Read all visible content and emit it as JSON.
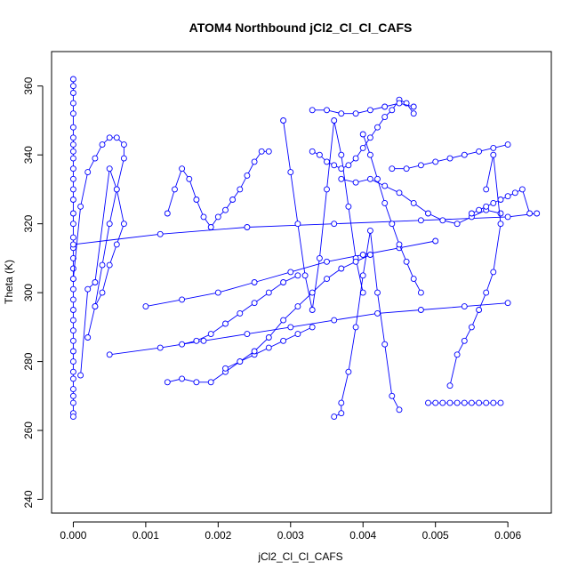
{
  "chart_data": {
    "type": "line",
    "title": "ATOM4 Northbound jCl2_Cl_Cl_CAFS",
    "xlabel": "jCl2_Cl_Cl_CAFS",
    "ylabel": "Theta (K)",
    "xlim": [
      -0.0003,
      0.0066
    ],
    "ylim": [
      236,
      370
    ],
    "xticks": [
      0.0,
      0.001,
      0.002,
      0.003,
      0.004,
      0.005,
      0.006
    ],
    "xtick_labels": [
      "0.000",
      "0.001",
      "0.002",
      "0.003",
      "0.004",
      "0.005",
      "0.006"
    ],
    "yticks": [
      240,
      260,
      280,
      300,
      320,
      340,
      360
    ],
    "ytick_labels": [
      "240",
      "260",
      "280",
      "300",
      "320",
      "340",
      "360"
    ],
    "grid": false,
    "marker": "open-circle",
    "color": "#0000ff",
    "series": [
      {
        "x": [
          0,
          0,
          0,
          0,
          0,
          0,
          0,
          0,
          0,
          0,
          0,
          0,
          0,
          0,
          0,
          0,
          0,
          0,
          0,
          0,
          0,
          0,
          0,
          0,
          0,
          0,
          0,
          0,
          0,
          0,
          0,
          0,
          0,
          0,
          0,
          0
        ],
        "y": [
          362,
          360,
          358,
          355,
          352,
          348,
          345,
          343,
          341,
          339,
          336,
          333,
          330,
          327,
          323,
          320,
          316,
          313,
          310,
          307,
          304,
          301,
          298,
          295,
          292,
          289,
          286,
          283,
          280,
          277,
          275,
          272,
          270,
          268,
          265,
          264
        ]
      },
      {
        "x": [
          0.0,
          0.0001,
          0.0002,
          0.0003,
          0.0004,
          0.0005,
          0.0006,
          0.0007,
          0.0007,
          0.0006,
          0.0005,
          0.0004,
          0.0003
        ],
        "y": [
          304,
          325,
          335,
          339,
          343,
          345,
          345,
          343,
          339,
          330,
          320,
          308,
          296
        ]
      },
      {
        "x": [
          0.0002,
          0.0003,
          0.0004,
          0.0005,
          0.0006,
          0.0007,
          0.0006,
          0.0005,
          0.0003,
          0.0002,
          0.0001
        ],
        "y": [
          287,
          296,
          300,
          308,
          314,
          320,
          330,
          336,
          303,
          301,
          276
        ]
      },
      {
        "x": [
          0.0,
          0.0012,
          0.0024,
          0.0036,
          0.0048,
          0.006,
          0.0064
        ],
        "y": [
          314,
          317,
          319,
          320,
          321,
          322,
          323
        ]
      },
      {
        "x": [
          0.0005,
          0.0012,
          0.0018,
          0.0024,
          0.003,
          0.0036,
          0.0042,
          0.0048,
          0.0054,
          0.006
        ],
        "y": [
          282,
          284,
          286,
          288,
          290,
          292,
          294,
          295,
          296,
          297
        ]
      },
      {
        "x": [
          0.001,
          0.0015,
          0.002,
          0.0025,
          0.003,
          0.0035,
          0.004,
          0.0045,
          0.005
        ],
        "y": [
          296,
          298,
          300,
          303,
          306,
          309,
          311,
          313,
          315
        ]
      },
      {
        "x": [
          0.0013,
          0.0014,
          0.0015,
          0.0016,
          0.0017,
          0.0018,
          0.0019,
          0.002,
          0.0021,
          0.0022,
          0.0023,
          0.0024,
          0.0025,
          0.0026,
          0.0027
        ],
        "y": [
          323,
          330,
          336,
          333,
          327,
          322,
          319,
          322,
          324,
          327,
          330,
          334,
          338,
          341,
          341
        ]
      },
      {
        "x": [
          0.0013,
          0.0015,
          0.0017,
          0.0019,
          0.0021,
          0.0023,
          0.0025,
          0.0027,
          0.0029,
          0.0031,
          0.0033
        ],
        "y": [
          274,
          275,
          274,
          274,
          277,
          280,
          282,
          284,
          286,
          288,
          290
        ]
      },
      {
        "x": [
          0.0029,
          0.003,
          0.0031,
          0.0032,
          0.0033,
          0.0034,
          0.0035,
          0.0036,
          0.0037,
          0.0038,
          0.0039,
          0.004
        ],
        "y": [
          350,
          335,
          320,
          305,
          295,
          310,
          330,
          350,
          340,
          325,
          310,
          300
        ]
      },
      {
        "x": [
          0.0033,
          0.0034,
          0.0035,
          0.0036,
          0.0037,
          0.0038,
          0.0039,
          0.004,
          0.0041,
          0.0042,
          0.0043,
          0.0044,
          0.0045,
          0.0046,
          0.0047
        ],
        "y": [
          341,
          340,
          338,
          337,
          336,
          337,
          339,
          342,
          345,
          348,
          351,
          353,
          356,
          355,
          352
        ]
      },
      {
        "x": [
          0.0036,
          0.0037,
          0.0037,
          0.0038,
          0.0039,
          0.004,
          0.0041,
          0.0042,
          0.0043,
          0.0044,
          0.0045
        ],
        "y": [
          264,
          265,
          268,
          277,
          290,
          305,
          318,
          300,
          285,
          270,
          266
        ]
      },
      {
        "x": [
          0.0037,
          0.0039,
          0.0041,
          0.0043,
          0.0045,
          0.0047,
          0.0049,
          0.0051,
          0.0053,
          0.0055,
          0.0057,
          0.0059
        ],
        "y": [
          333,
          332,
          333,
          331,
          329,
          326,
          323,
          321,
          320,
          322,
          324,
          323
        ]
      },
      {
        "x": [
          0.0049,
          0.005,
          0.0051,
          0.0052,
          0.0053,
          0.0054,
          0.0055,
          0.0056,
          0.0057,
          0.0058,
          0.0059
        ],
        "y": [
          268,
          268,
          268,
          268,
          268,
          268,
          268,
          268,
          268,
          268,
          268
        ]
      },
      {
        "x": [
          0.0052,
          0.0053,
          0.0054,
          0.0055,
          0.0056,
          0.0057,
          0.0058,
          0.0059,
          0.0058,
          0.0057
        ],
        "y": [
          273,
          282,
          286,
          290,
          295,
          300,
          306,
          320,
          340,
          330
        ]
      },
      {
        "x": [
          0.0044,
          0.0046,
          0.0048,
          0.005,
          0.0052,
          0.0054,
          0.0056,
          0.0058,
          0.006
        ],
        "y": [
          336,
          336,
          337,
          338,
          339,
          340,
          341,
          342,
          343
        ]
      },
      {
        "x": [
          0.0021,
          0.0023,
          0.0025,
          0.0027,
          0.0029,
          0.0031,
          0.0033,
          0.0035,
          0.0037,
          0.0039,
          0.0041
        ],
        "y": [
          278,
          280,
          283,
          287,
          292,
          296,
          300,
          304,
          307,
          309,
          311
        ]
      },
      {
        "x": [
          0.0015,
          0.0017,
          0.0019,
          0.0021,
          0.0023,
          0.0025,
          0.0027,
          0.0029,
          0.0031
        ],
        "y": [
          285,
          286,
          288,
          291,
          294,
          297,
          300,
          303,
          305
        ]
      },
      {
        "x": [
          0.004,
          0.0041,
          0.0042,
          0.0043,
          0.0044,
          0.0045,
          0.0046,
          0.0047,
          0.0048
        ],
        "y": [
          346,
          340,
          333,
          326,
          320,
          314,
          309,
          304,
          300
        ]
      },
      {
        "x": [
          0.0033,
          0.0035,
          0.0037,
          0.0039,
          0.0041,
          0.0043,
          0.0045,
          0.0047
        ],
        "y": [
          353,
          353,
          352,
          352,
          353,
          354,
          355,
          354
        ]
      },
      {
        "x": [
          0.0055,
          0.0056,
          0.0057,
          0.0058,
          0.0059,
          0.006,
          0.0061,
          0.0062,
          0.0063
        ],
        "y": [
          323,
          324,
          325,
          326,
          327,
          328,
          329,
          330,
          323
        ]
      }
    ]
  }
}
